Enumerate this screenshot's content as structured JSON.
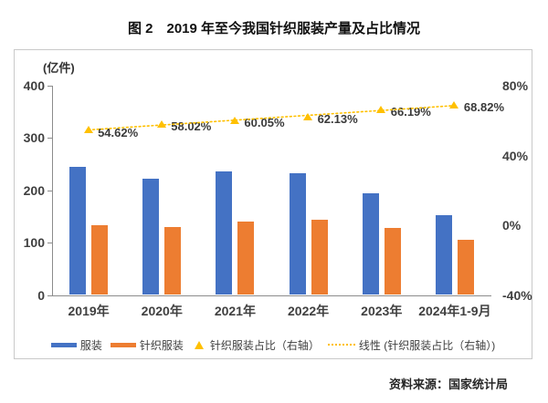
{
  "title": "图 2　2019 年至今我国针织服装产量及占比情况",
  "source": "资料来源：国家统计局",
  "chart_data": {
    "type": "bar",
    "categories": [
      "2019年",
      "2020年",
      "2021年",
      "2022年",
      "2023年",
      "2024年1-9月"
    ],
    "series": [
      {
        "name": "服装",
        "type": "bar",
        "axis": "left",
        "color": "#4472C4",
        "values": [
          245,
          223,
          236,
          232,
          194,
          152
        ]
      },
      {
        "name": "针织服装",
        "type": "bar",
        "axis": "left",
        "color": "#ED7D31",
        "values": [
          134,
          130,
          141,
          144,
          128,
          105
        ]
      },
      {
        "name": "针织服装占比（右轴）",
        "type": "scatter",
        "marker": "triangle",
        "axis": "right",
        "color": "#FFC000",
        "values": [
          54.62,
          58.02,
          60.05,
          62.13,
          66.19,
          68.82
        ],
        "labels": [
          "54.62%",
          "58.02%",
          "60.05%",
          "62.13%",
          "66.19%",
          "68.82%"
        ]
      },
      {
        "name": "线性 (针织服装占比（右轴）)",
        "type": "linear-trendline",
        "axis": "right",
        "color": "#FFC000",
        "style": "dotted",
        "of_series": "针织服装占比（右轴）"
      }
    ],
    "left_axis": {
      "unit": "(亿件)",
      "min": 0,
      "max": 400,
      "ticks": [
        400,
        300,
        200,
        100,
        0
      ]
    },
    "right_axis": {
      "min": -40,
      "max": 80,
      "ticks": [
        80,
        40,
        0,
        -40
      ],
      "tick_labels": [
        "80%",
        "40%",
        "0%",
        "-40%"
      ]
    },
    "legend_position": "bottom",
    "grid": false
  },
  "colors": {
    "bar_blue": "#4472C4",
    "bar_orange": "#ED7D31",
    "marker_gold": "#FFC000",
    "axis_line": "#8C8C8C",
    "axis_text": "#404040",
    "box_border": "#C9C9C9"
  }
}
